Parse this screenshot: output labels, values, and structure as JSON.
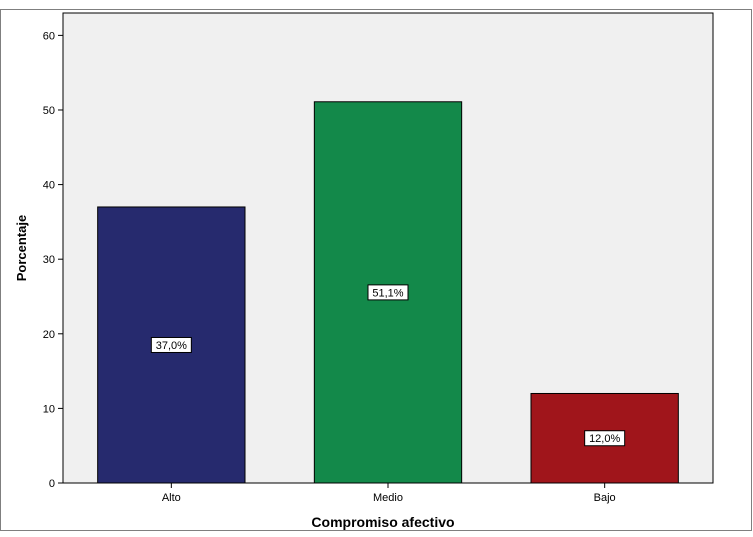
{
  "chart_data": {
    "type": "bar",
    "title": "",
    "xlabel": "Compromiso afectivo",
    "ylabel": "Porcentaje",
    "categories": [
      "Alto",
      "Medio",
      "Bajo"
    ],
    "values": [
      37.0,
      51.1,
      12.0
    ],
    "data_labels": [
      "37,0%",
      "51,1%",
      "12,0%"
    ],
    "bar_colors": [
      "#262A6E",
      "#13894A",
      "#A0151B"
    ],
    "ylim": [
      0,
      63
    ],
    "yticks": [
      0,
      10,
      20,
      30,
      40,
      50,
      60
    ],
    "grid": false,
    "legend": "none"
  },
  "colors": {
    "plot_background": "#F0F0F0",
    "axis": "#000000"
  }
}
